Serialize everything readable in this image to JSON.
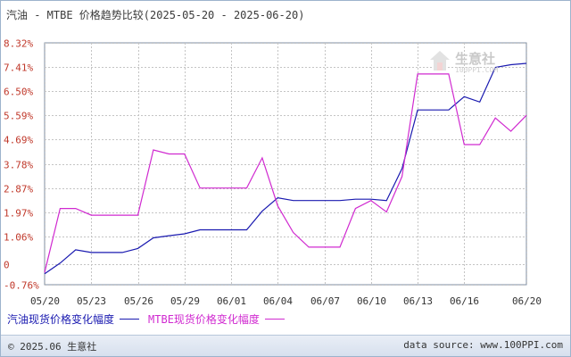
{
  "title": "汽油 - MTBE 价格趋势比较(2025-05-20 - 2025-06-20)",
  "watermark": {
    "name": "生意社",
    "url": "100PPI.COM"
  },
  "legend": [
    {
      "label": "汽油现货价格变化幅度",
      "color": "#1a1ab0"
    },
    {
      "label": "MTBE现货价格变化幅度",
      "color": "#d02ad0"
    }
  ],
  "footer": {
    "left": "© 2025.06 生意社",
    "right": "data source: www.100PPI.com"
  },
  "chart_data": {
    "type": "line",
    "title": "汽油 - MTBE 价格趋势比较(2025-05-20 - 2025-06-20)",
    "xlabel": "",
    "ylabel": "",
    "ylim": [
      -0.76,
      8.32
    ],
    "y_ticks": [
      "8.32%",
      "7.41%",
      "6.50%",
      "5.59%",
      "4.69%",
      "3.78%",
      "2.87%",
      "1.97%",
      "1.06%",
      "0",
      "-0.76%"
    ],
    "y_tick_values": [
      8.32,
      7.41,
      6.5,
      5.59,
      4.69,
      3.78,
      2.87,
      1.97,
      1.06,
      0,
      -0.76
    ],
    "x_ticks": [
      "05/20",
      "05/23",
      "05/26",
      "05/29",
      "06/01",
      "06/04",
      "06/07",
      "06/10",
      "06/13",
      "06/16",
      "06/20"
    ],
    "x": [
      "05/20",
      "05/21",
      "05/22",
      "05/23",
      "05/24",
      "05/25",
      "05/26",
      "05/27",
      "05/28",
      "05/29",
      "05/30",
      "05/31",
      "06/01",
      "06/02",
      "06/03",
      "06/04",
      "06/05",
      "06/06",
      "06/07",
      "06/08",
      "06/09",
      "06/10",
      "06/11",
      "06/12",
      "06/13",
      "06/14",
      "06/15",
      "06/16",
      "06/17",
      "06/18",
      "06/19",
      "06/20"
    ],
    "grid": true,
    "legend_position": "bottom",
    "series": [
      {
        "name": "汽油现货价格变化幅度",
        "color": "#1a1ab0",
        "values": [
          -0.35,
          0.05,
          0.55,
          0.45,
          0.45,
          0.45,
          0.6,
          1.0,
          1.08,
          1.15,
          1.3,
          1.3,
          1.3,
          1.3,
          2.0,
          2.5,
          2.4,
          2.4,
          2.4,
          2.4,
          2.45,
          2.45,
          2.4,
          3.6,
          5.8,
          5.8,
          5.8,
          6.3,
          6.1,
          7.4,
          7.5,
          7.55
        ]
      },
      {
        "name": "MTBE现货价格变化幅度",
        "color": "#d02ad0",
        "values": [
          -0.3,
          2.1,
          2.1,
          1.85,
          1.85,
          1.85,
          1.85,
          4.3,
          4.15,
          4.15,
          2.87,
          2.87,
          2.87,
          2.87,
          4.0,
          2.2,
          1.2,
          0.65,
          0.65,
          0.65,
          2.1,
          2.4,
          1.97,
          3.3,
          7.15,
          7.15,
          7.15,
          4.5,
          4.5,
          5.5,
          5.0,
          5.6
        ]
      }
    ]
  }
}
